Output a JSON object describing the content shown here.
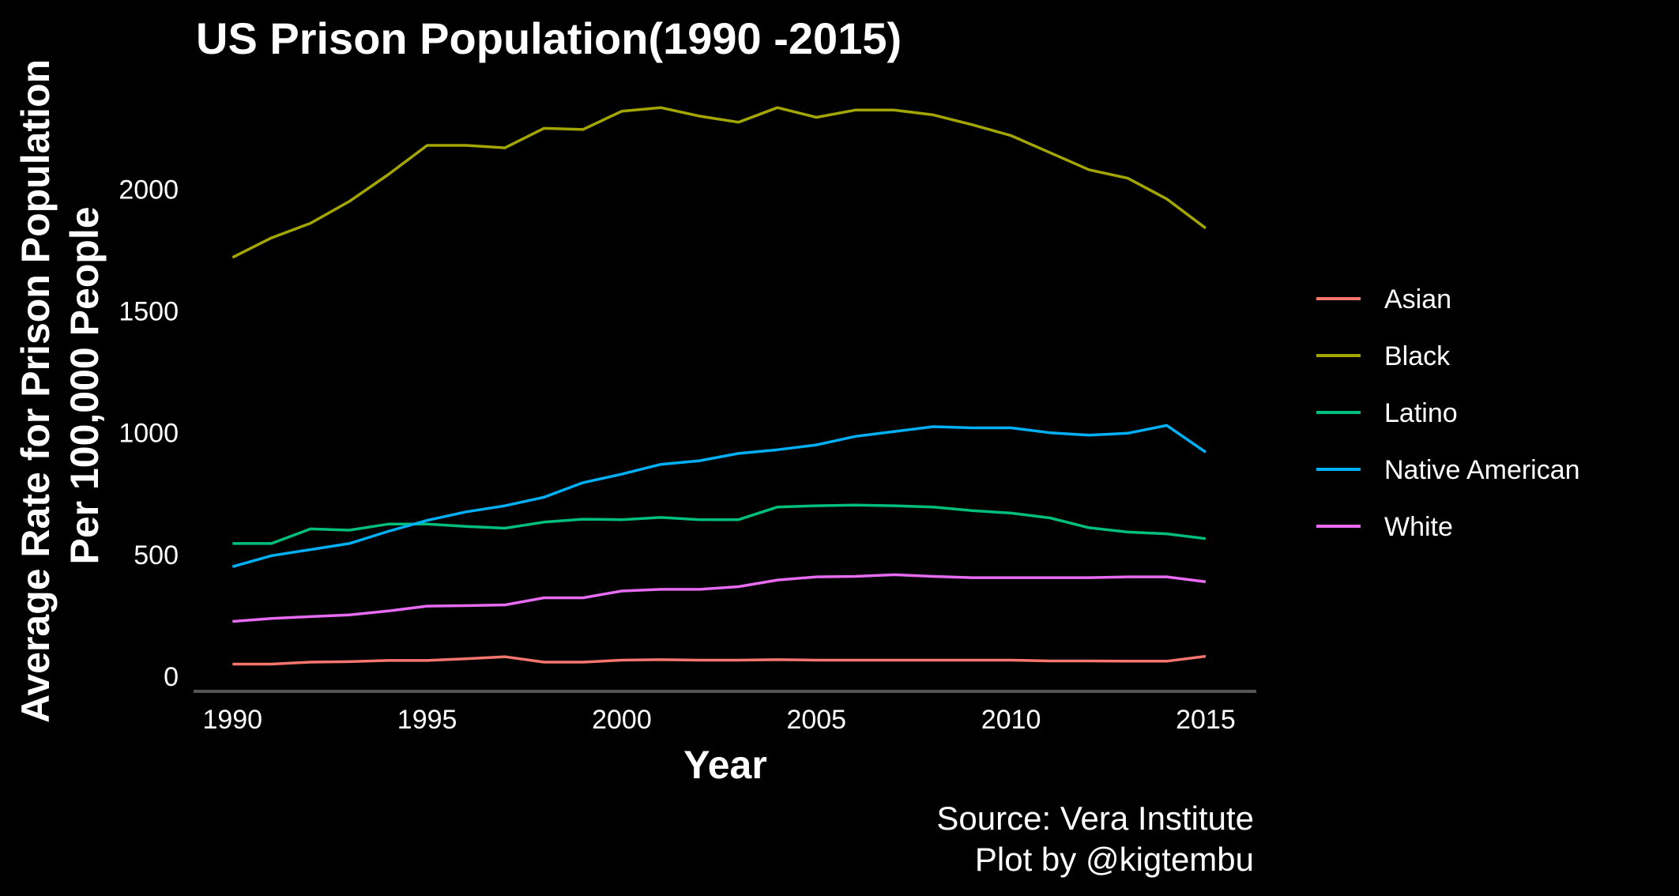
{
  "chart_data": {
    "type": "line",
    "title": "US Prison Population(1990 -2015)",
    "xlabel": "Year",
    "ylabel_lines": [
      "Average Rate for Prison Population",
      "Per 100,000 People"
    ],
    "caption_lines": [
      "Source: Vera Institute",
      "Plot by @kigtembu"
    ],
    "x": [
      1990,
      1991,
      1992,
      1993,
      1994,
      1995,
      1996,
      1997,
      1998,
      1999,
      2000,
      2001,
      2002,
      2003,
      2004,
      2005,
      2006,
      2007,
      2008,
      2009,
      2010,
      2011,
      2012,
      2013,
      2014,
      2015
    ],
    "xlim": [
      1989,
      2016.3
    ],
    "ylim": [
      -62,
      2420
    ],
    "x_ticks": [
      1990,
      1995,
      2000,
      2005,
      2010,
      2015
    ],
    "x_tick_labels": [
      "1990",
      "1995",
      "2000",
      "2005",
      "2010",
      "2015"
    ],
    "y_ticks": [
      0,
      500,
      1000,
      1500,
      2000
    ],
    "y_tick_labels": [
      "0",
      "500",
      "1000",
      "1500",
      "2000"
    ],
    "grid": false,
    "legend_position": "right",
    "series": [
      {
        "name": "Asian",
        "color": "#F8766D",
        "values": [
          50,
          50,
          58,
          60,
          65,
          65,
          72,
          80,
          58,
          58,
          66,
          68,
          66,
          66,
          68,
          66,
          66,
          66,
          66,
          66,
          66,
          63,
          63,
          62,
          62,
          82
        ]
      },
      {
        "name": "Black",
        "color": "#A3A500",
        "values": [
          1720,
          1800,
          1860,
          1950,
          2060,
          2180,
          2180,
          2170,
          2250,
          2245,
          2320,
          2335,
          2300,
          2275,
          2335,
          2295,
          2325,
          2325,
          2305,
          2265,
          2220,
          2150,
          2080,
          2045,
          1960,
          1840
        ]
      },
      {
        "name": "Latino",
        "color": "#00BF7D",
        "values": [
          545,
          545,
          605,
          600,
          625,
          625,
          615,
          608,
          633,
          645,
          643,
          652,
          643,
          643,
          695,
          700,
          703,
          700,
          695,
          680,
          670,
          650,
          610,
          592,
          585,
          565
        ]
      },
      {
        "name": "Native American",
        "color": "#00B0F6",
        "values": [
          450,
          495,
          520,
          545,
          595,
          640,
          675,
          700,
          735,
          795,
          830,
          870,
          885,
          915,
          930,
          950,
          985,
          1005,
          1025,
          1020,
          1020,
          1000,
          990,
          998,
          1030,
          920
        ]
      },
      {
        "name": "White",
        "color": "#E76BF3",
        "values": [
          225,
          237,
          245,
          252,
          268,
          288,
          290,
          293,
          322,
          322,
          350,
          357,
          357,
          368,
          395,
          408,
          410,
          417,
          410,
          405,
          405,
          405,
          405,
          408,
          408,
          388
        ]
      }
    ]
  }
}
